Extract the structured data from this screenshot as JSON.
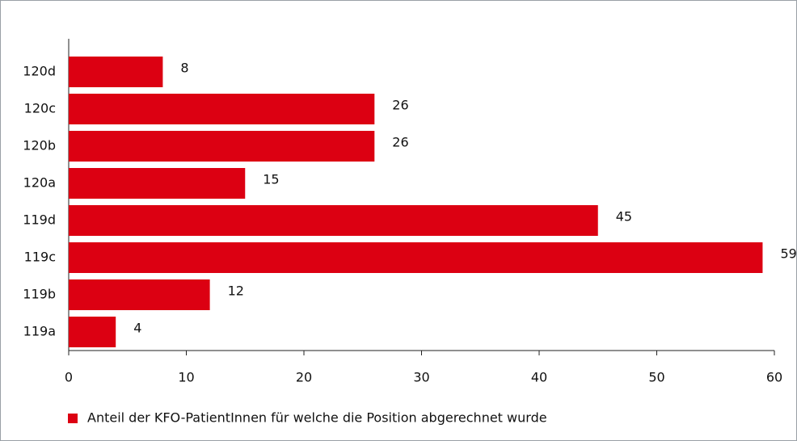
{
  "chart_data": {
    "type": "bar",
    "orientation": "horizontal",
    "categories": [
      "120d",
      "120c",
      "120b",
      "120a",
      "119d",
      "119c",
      "119b",
      "119a"
    ],
    "series": [
      {
        "name": "Anteil der KFO-PatientInnen für welche die Position abgerechnet wurde",
        "color": "#dc0012",
        "values": [
          8,
          26,
          26,
          15,
          45,
          59,
          12,
          4
        ]
      }
    ],
    "xlim": [
      0,
      60
    ],
    "xticks": [
      0,
      10,
      20,
      30,
      40,
      50,
      60
    ],
    "grid": false,
    "legend": "bottom-left"
  }
}
